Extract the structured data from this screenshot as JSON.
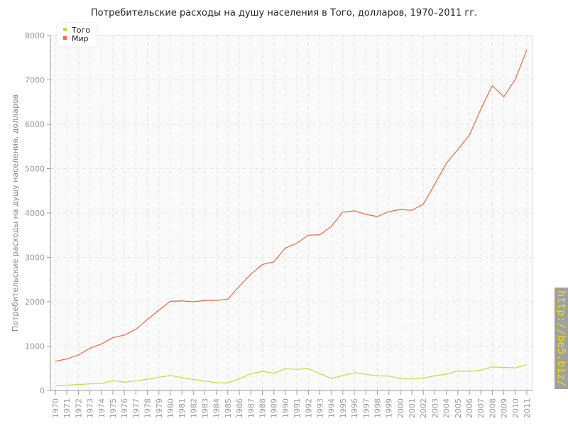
{
  "chart_data": {
    "type": "line",
    "title": "Потребительские расходы на душу населения в Того, долларов, 1970–2011 гг.",
    "xlabel": "",
    "ylabel": "Потребительские расходы на душу населения, долларов",
    "ylim": [
      0,
      8000
    ],
    "yticks": [
      0,
      1000,
      2000,
      3000,
      4000,
      5000,
      6000,
      7000,
      8000
    ],
    "grid": true,
    "legend_position": "top-left",
    "x": [
      1970,
      1971,
      1972,
      1973,
      1974,
      1975,
      1976,
      1977,
      1978,
      1979,
      1980,
      1981,
      1982,
      1983,
      1984,
      1985,
      1986,
      1987,
      1988,
      1989,
      1990,
      1991,
      1992,
      1993,
      1994,
      1995,
      1996,
      1997,
      1998,
      1999,
      2000,
      2001,
      2002,
      2003,
      2004,
      2005,
      2006,
      2007,
      2008,
      2009,
      2010,
      2011
    ],
    "series": [
      {
        "name": "Того",
        "color": "#c3dc3c",
        "values": [
          110,
          120,
          135,
          150,
          155,
          225,
          185,
          220,
          255,
          300,
          340,
          290,
          250,
          215,
          175,
          175,
          265,
          380,
          430,
          390,
          490,
          475,
          495,
          380,
          270,
          340,
          400,
          365,
          330,
          325,
          270,
          260,
          280,
          330,
          370,
          440,
          430,
          460,
          530,
          520,
          510,
          580
        ]
      },
      {
        "name": "Мир",
        "color": "#e8693e",
        "values": [
          660,
          710,
          800,
          950,
          1050,
          1190,
          1250,
          1380,
          1600,
          1810,
          2010,
          2020,
          2000,
          2030,
          2030,
          2060,
          2350,
          2620,
          2840,
          2900,
          3210,
          3320,
          3500,
          3510,
          3700,
          4020,
          4050,
          3970,
          3920,
          4030,
          4080,
          4060,
          4200,
          4650,
          5120,
          5430,
          5750,
          6340,
          6870,
          6620,
          7010,
          7680
        ]
      }
    ]
  },
  "watermark": "http://be5.biz/"
}
